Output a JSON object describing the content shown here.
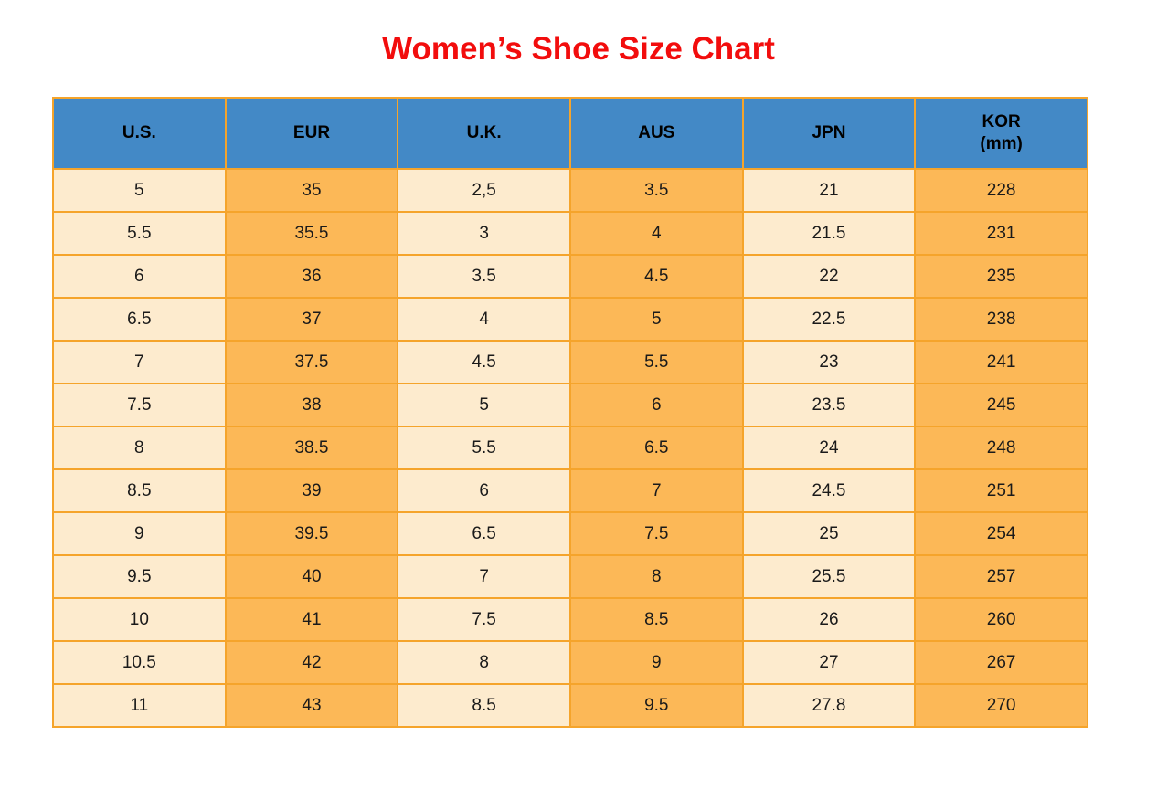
{
  "page": {
    "title": "Women’s Shoe Size Chart"
  },
  "colors": {
    "title": "#f20d0d",
    "header_bg": "#4389c6",
    "cream": "#fdebce",
    "orange": "#fcb857",
    "border": "#f5a42b",
    "text": "#1a1a1a"
  },
  "chart_data": {
    "type": "table",
    "title": "Women’s Shoe Size Chart",
    "columns": [
      {
        "label": "U.S.",
        "sublabel": ""
      },
      {
        "label": "EUR",
        "sublabel": ""
      },
      {
        "label": "U.K.",
        "sublabel": ""
      },
      {
        "label": "AUS",
        "sublabel": ""
      },
      {
        "label": "JPN",
        "sublabel": ""
      },
      {
        "label": "KOR",
        "sublabel": "(mm)"
      }
    ],
    "rows": [
      [
        "5",
        "35",
        "2,5",
        "3.5",
        "21",
        "228"
      ],
      [
        "5.5",
        "35.5",
        "3",
        "4",
        "21.5",
        "231"
      ],
      [
        "6",
        "36",
        "3.5",
        "4.5",
        "22",
        "235"
      ],
      [
        "6.5",
        "37",
        "4",
        "5",
        "22.5",
        "238"
      ],
      [
        "7",
        "37.5",
        "4.5",
        "5.5",
        "23",
        "241"
      ],
      [
        "7.5",
        "38",
        "5",
        "6",
        "23.5",
        "245"
      ],
      [
        "8",
        "38.5",
        "5.5",
        "6.5",
        "24",
        "248"
      ],
      [
        "8.5",
        "39",
        "6",
        "7",
        "24.5",
        "251"
      ],
      [
        "9",
        "39.5",
        "6.5",
        "7.5",
        "25",
        "254"
      ],
      [
        "9.5",
        "40",
        "7",
        "8",
        "25.5",
        "257"
      ],
      [
        "10",
        "41",
        "7.5",
        "8.5",
        "26",
        "260"
      ],
      [
        "10.5",
        "42",
        "8",
        "9",
        "27",
        "267"
      ],
      [
        "11",
        "43",
        "8.5",
        "9.5",
        "27.8",
        "270"
      ]
    ],
    "layout": {
      "header_position": "top",
      "grid": true,
      "column_fill_pattern": [
        "cream",
        "orange",
        "cream",
        "orange",
        "cream",
        "orange"
      ]
    }
  }
}
